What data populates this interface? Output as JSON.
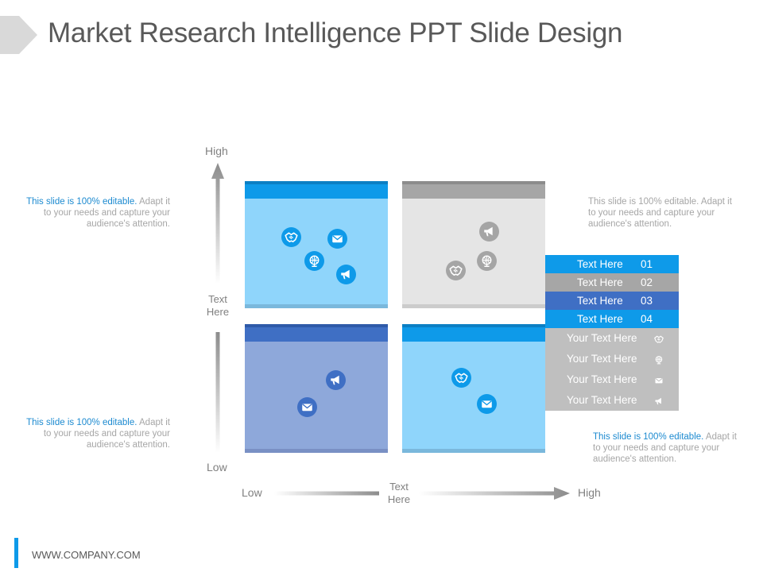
{
  "title": "Market Research Intelligence PPT Slide Design",
  "footer": {
    "url": "WWW.COMPANY.COM"
  },
  "colors": {
    "bright_blue": "#0e9ae9",
    "light_blue": "#8fd5fb",
    "royal_blue": "#3f6fc4",
    "periwinkle": "#8ea8da",
    "gray_band": "#a6a6a6",
    "light_gray": "#e5e5e5",
    "icon_gray": "#a5a5a5",
    "text_gray": "#a6a6a6",
    "highlight": "#1c8ad0"
  },
  "descriptions": [
    {
      "highlight": "This slide is 100% editable.",
      "text": " Adapt it to your needs and capture your audience's attention."
    },
    {
      "highlight": "This slide is 100% editable.",
      "text": " Adapt it to your needs and capture your audience's attention."
    },
    {
      "highlight": "This slide is 100% editable.",
      "text": " Adapt it to your needs and capture your audience's attention."
    },
    {
      "highlight": "This slide is 100% editable.",
      "text": " Adapt it to your needs and capture your audience's attention."
    }
  ],
  "axes": {
    "y_high": "High",
    "y_low": "Low",
    "y_mid": "Text\nHere",
    "x_low": "Low",
    "x_high": "High",
    "x_mid": "Text\nHere"
  },
  "quadrants": [
    {
      "name": "top-left",
      "icons": [
        "handshake-icon",
        "mail-icon",
        "globe-icon",
        "megaphone-icon"
      ]
    },
    {
      "name": "top-right",
      "icons": [
        "megaphone-icon",
        "globe-icon",
        "handshake-icon"
      ]
    },
    {
      "name": "bottom-left",
      "icons": [
        "megaphone-icon",
        "mail-icon"
      ]
    },
    {
      "name": "bottom-right",
      "icons": [
        "handshake-icon",
        "mail-icon"
      ]
    }
  ],
  "legend_rows": [
    {
      "label": "Text Here",
      "num": "01",
      "color": "#0e9ae9"
    },
    {
      "label": "Text Here",
      "num": "02",
      "color": "#a6a6a6"
    },
    {
      "label": "Text Here",
      "num": "03",
      "color": "#3f6fc4"
    },
    {
      "label": "Text Here",
      "num": "04",
      "color": "#0e9ae9"
    }
  ],
  "legend_items": [
    {
      "label": "Your Text Here",
      "icon": "handshake-icon"
    },
    {
      "label": "Your Text Here",
      "icon": "globe-icon"
    },
    {
      "label": "Your Text Here",
      "icon": "mail-icon"
    },
    {
      "label": "Your Text Here",
      "icon": "megaphone-icon"
    }
  ]
}
